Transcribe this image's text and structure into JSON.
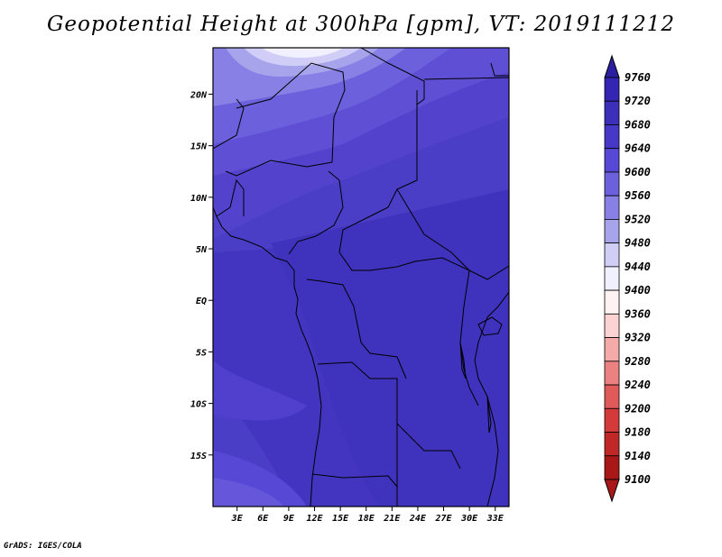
{
  "title": "Geopotential Height at 300hPa [gpm], VT: 2019111212",
  "credit": "GrADS: IGES/COLA",
  "map": {
    "lat_ticks": [
      "20N",
      "15N",
      "10N",
      "5N",
      "EQ",
      "5S",
      "10S",
      "15S"
    ],
    "lat_values": [
      20,
      15,
      10,
      5,
      0,
      -5,
      -10,
      -15
    ],
    "lon_ticks": [
      "3E",
      "6E",
      "9E",
      "12E",
      "15E",
      "18E",
      "21E",
      "24E",
      "27E",
      "30E",
      "33E"
    ],
    "lon_values": [
      3,
      6,
      9,
      12,
      15,
      18,
      21,
      24,
      27,
      30,
      33
    ],
    "lat_range": [
      -20,
      24.5
    ],
    "lon_range": [
      0.2,
      34.6
    ]
  },
  "colorbar": {
    "labels": [
      "9760",
      "9720",
      "9680",
      "9640",
      "9600",
      "9560",
      "9520",
      "9480",
      "9440",
      "9400",
      "9360",
      "9320",
      "9280",
      "9240",
      "9200",
      "9180",
      "9140",
      "9100"
    ],
    "colors_top_to_bottom": [
      "#2b1ea0",
      "#3426b2",
      "#3c30bb",
      "#4838c8",
      "#5848d6",
      "#6c60dc",
      "#8880e4",
      "#a8a4ec",
      "#d0cef6",
      "#f0f0ff",
      "#fef2f2",
      "#fbd3d3",
      "#f5aaaa",
      "#ec8181",
      "#e05a5a",
      "#d43a3a",
      "#c02828",
      "#a81818"
    ]
  },
  "colors": {
    "field_base": "#4a3dc6",
    "field_low": "#4535c2",
    "field_high_north": "#f0f0ff",
    "coast": "#000000"
  }
}
